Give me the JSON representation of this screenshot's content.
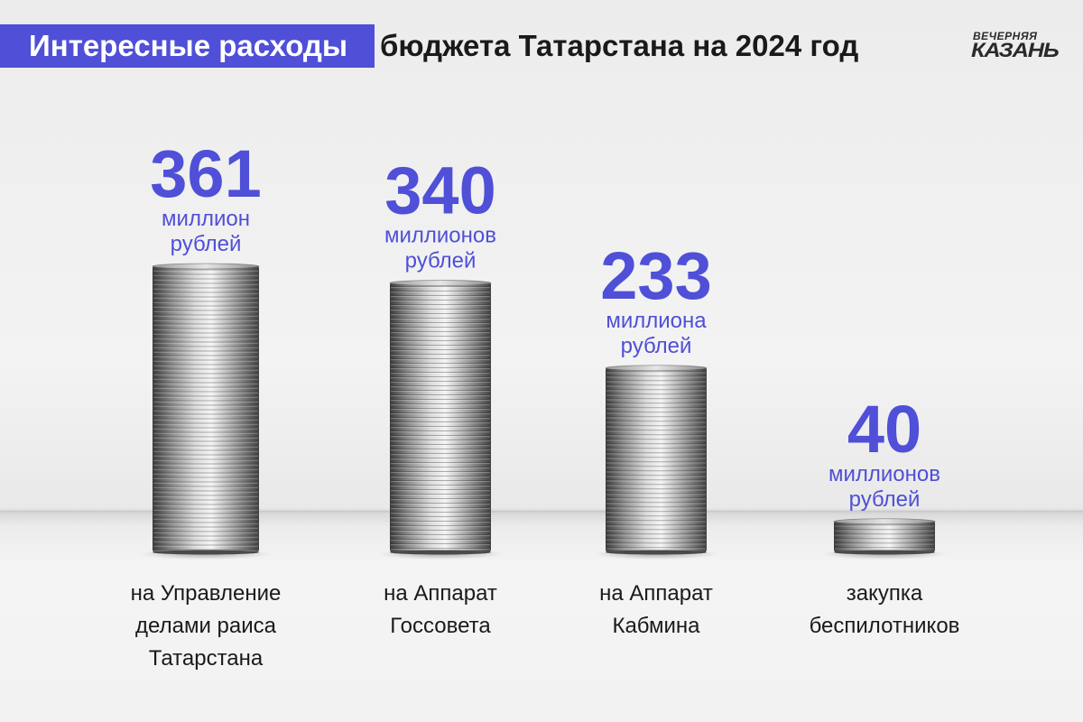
{
  "header": {
    "title_highlight": "Интересные расходы",
    "title_rest": "бюджета Татарстана на 2024 год",
    "accent_color": "#4f4fd8"
  },
  "logo": {
    "line1": "ВЕЧЕРНЯЯ",
    "line2": "КАЗАНЬ"
  },
  "chart_data": {
    "type": "bar",
    "style": "coin-stacks",
    "unit": "млн руб.",
    "categories": [
      [
        "на Управление",
        "делами раиса",
        "Татарстана"
      ],
      [
        "на Аппарат",
        "Госсовета"
      ],
      [
        "на Аппарат",
        "Кабмина"
      ],
      [
        "закупка",
        "беспилотников"
      ]
    ],
    "values": [
      361,
      340,
      233,
      40
    ],
    "value_labels": [
      "361",
      "340",
      "233",
      "40"
    ],
    "unit_labels": [
      [
        "миллион",
        "рублей"
      ],
      [
        "миллионов",
        "рублей"
      ],
      [
        "миллиона",
        "рублей"
      ],
      [
        "миллионов",
        "рублей"
      ]
    ],
    "color": "#4f4fd8"
  }
}
